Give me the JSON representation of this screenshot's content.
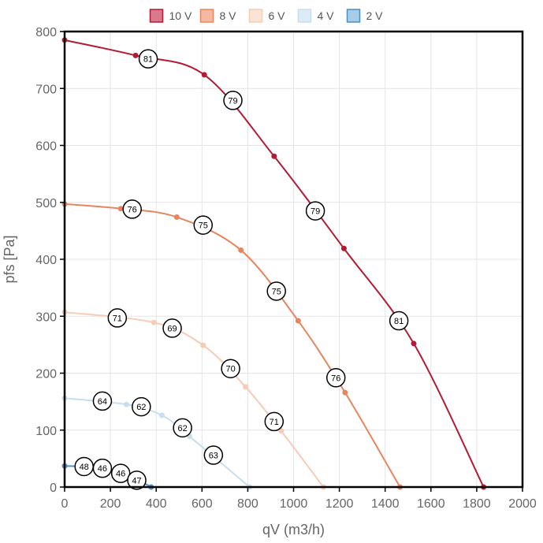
{
  "chart_data": {
    "type": "line",
    "xlabel": "qV (m3/h)",
    "ylabel": "pfs [Pa]",
    "xlim": [
      0,
      2000
    ],
    "ylim": [
      0,
      800
    ],
    "xticks": [
      0,
      200,
      400,
      600,
      800,
      1000,
      1200,
      1400,
      1600,
      1800,
      2000
    ],
    "yticks": [
      0,
      100,
      200,
      300,
      400,
      500,
      600,
      700,
      800
    ],
    "grid": true,
    "legend_position": "top",
    "series": [
      {
        "name": "10 V",
        "color": "#b31b34",
        "fill": "#d87a8c",
        "points": [
          [
            0,
            785
          ],
          [
            310,
            758
          ],
          [
            610,
            724
          ],
          [
            915,
            581
          ],
          [
            1220,
            419
          ],
          [
            1525,
            252
          ],
          [
            1830,
            0
          ]
        ],
        "labels": [
          {
            "x": 365,
            "y": 752,
            "text": "81"
          },
          {
            "x": 735,
            "y": 679,
            "text": "79"
          },
          {
            "x": 1095,
            "y": 485,
            "text": "79"
          },
          {
            "x": 1460,
            "y": 292,
            "text": "81"
          }
        ]
      },
      {
        "name": "8 V",
        "color": "#e8855f",
        "fill": "#f4b9a0",
        "points": [
          [
            0,
            497
          ],
          [
            245,
            489
          ],
          [
            490,
            474
          ],
          [
            770,
            416
          ],
          [
            1020,
            292
          ],
          [
            1225,
            166
          ],
          [
            1465,
            0
          ]
        ],
        "labels": [
          {
            "x": 295,
            "y": 488,
            "text": "76"
          },
          {
            "x": 605,
            "y": 460,
            "text": "75"
          },
          {
            "x": 925,
            "y": 344,
            "text": "75"
          },
          {
            "x": 1185,
            "y": 192,
            "text": "76"
          }
        ]
      },
      {
        "name": "6 V",
        "color": "#f7cbb5",
        "fill": "#fbe3d6",
        "points": [
          [
            0,
            307
          ],
          [
            390,
            289
          ],
          [
            605,
            249
          ],
          [
            790,
            176
          ],
          [
            945,
            99
          ],
          [
            1130,
            0
          ]
        ],
        "labels": [
          {
            "x": 230,
            "y": 297,
            "text": "71"
          },
          {
            "x": 470,
            "y": 279,
            "text": "69"
          },
          {
            "x": 725,
            "y": 208,
            "text": "70"
          },
          {
            "x": 915,
            "y": 115,
            "text": "71"
          }
        ]
      },
      {
        "name": "4 V",
        "color": "#c6deee",
        "fill": "#dcebf5",
        "points": [
          [
            0,
            156
          ],
          [
            270,
            145
          ],
          [
            425,
            126
          ],
          [
            545,
            89
          ],
          [
            808,
            0
          ]
        ],
        "labels": [
          {
            "x": 165,
            "y": 151,
            "text": "64"
          },
          {
            "x": 335,
            "y": 141,
            "text": "62"
          },
          {
            "x": 515,
            "y": 104,
            "text": "62"
          },
          {
            "x": 650,
            "y": 56,
            "text": "63"
          }
        ]
      },
      {
        "name": "2 V",
        "color": "#4a90c4",
        "fill": "#a8cbe6",
        "points": [
          [
            0,
            37
          ],
          [
            115,
            35
          ],
          [
            230,
            25
          ],
          [
            310,
            14
          ],
          [
            378,
            0
          ]
        ],
        "labels": [
          {
            "x": 85,
            "y": 36,
            "text": "48"
          },
          {
            "x": 165,
            "y": 33,
            "text": "46"
          },
          {
            "x": 245,
            "y": 24,
            "text": "46"
          },
          {
            "x": 315,
            "y": 12,
            "text": "47"
          }
        ]
      }
    ]
  }
}
